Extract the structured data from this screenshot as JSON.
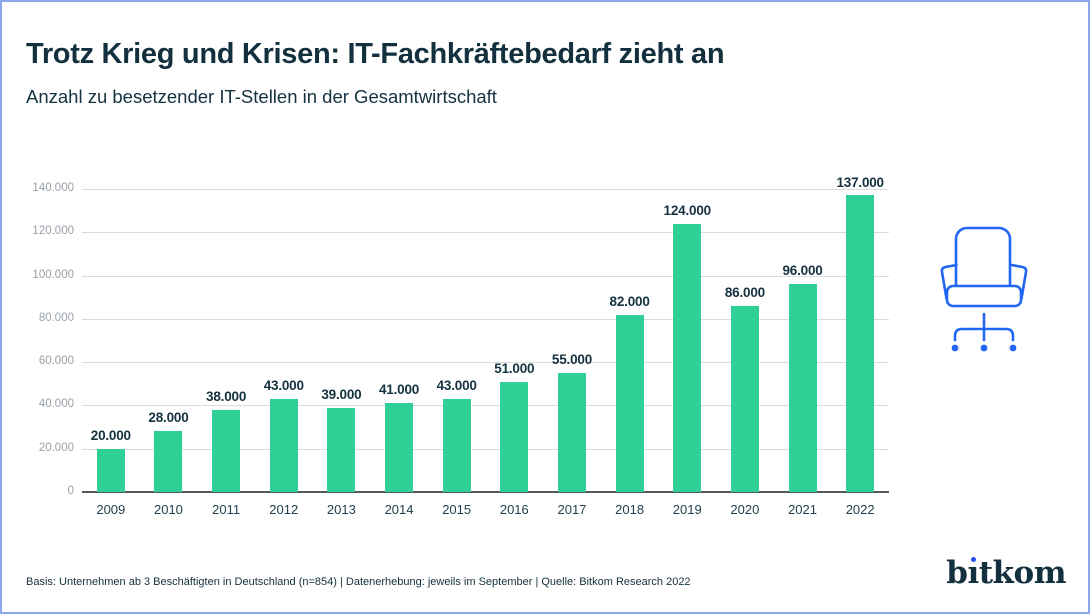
{
  "header": {
    "title": "Trotz Krieg und Krisen: IT-Fachkräftebedarf zieht an",
    "subtitle": "Anzahl zu besetzender IT-Stellen in der Gesamtwirtschaft"
  },
  "chart_data": {
    "type": "bar",
    "title": "Anzahl zu besetzender IT-Stellen in der Gesamtwirtschaft",
    "categories": [
      "2009",
      "2010",
      "2011",
      "2012",
      "2013",
      "2014",
      "2015",
      "2016",
      "2017",
      "2018",
      "2019",
      "2020",
      "2021",
      "2022"
    ],
    "values": [
      20000,
      28000,
      38000,
      43000,
      39000,
      41000,
      43000,
      51000,
      55000,
      82000,
      124000,
      86000,
      96000,
      137000
    ],
    "value_labels": [
      "20.000",
      "28.000",
      "38.000",
      "43.000",
      "39.000",
      "41.000",
      "43.000",
      "51.000",
      "55.000",
      "82.000",
      "124.000",
      "86.000",
      "96.000",
      "137.000"
    ],
    "y_ticks": [
      "140.000",
      "120.000",
      "100.000",
      "80.000",
      "60.000",
      "40.000",
      "20.000",
      "0"
    ],
    "ylim": [
      0,
      140000
    ],
    "grid": true,
    "legend": "none",
    "bar_color": "#2fd096",
    "value_label_color": "#14323f",
    "axis_label_color": "#99a1a8"
  },
  "illustration": {
    "icon": "office-chair-icon",
    "color": "#2166f4"
  },
  "footer": {
    "note": "Basis: Unternehmen ab 3 Beschäftigten in Deutschland (n=854) | Datenerhebung: jeweils im September | Quelle: Bitkom Research 2022",
    "logo": {
      "pre": "b",
      "i": "ı",
      "post": "tkom"
    }
  },
  "colors": {
    "frame_border": "#8da7ef",
    "title_text": "#12303e",
    "gridline": "#d9dbdd",
    "baseline": "#55595c",
    "logo_dot": "#2b51f0"
  }
}
